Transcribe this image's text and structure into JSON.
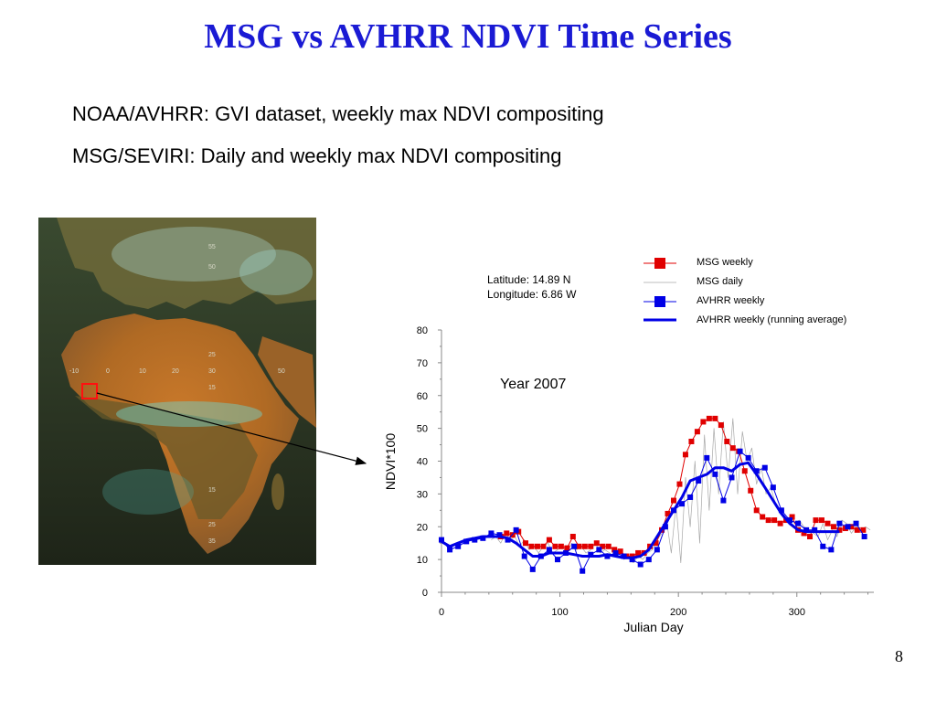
{
  "slide": {
    "title": "MSG vs AVHRR NDVI Time Series",
    "line1": "NOAA/AVHRR: GVI dataset, weekly max NDVI compositing",
    "line2": "MSG/SEVIRI: Daily and weekly max NDVI compositing",
    "page_number": "8"
  },
  "map": {
    "lat_labels": [
      "55",
      "50",
      "25",
      "15",
      "15",
      "25",
      "35"
    ],
    "lon_labels": [
      "-10",
      "0",
      "10",
      "20",
      "30",
      "50"
    ]
  },
  "chart_data": {
    "type": "line",
    "xlabel": "Julian Day",
    "ylabel": "NDVI*100",
    "xlim": [
      0,
      365
    ],
    "ylim": [
      0,
      80
    ],
    "xticks": [
      0,
      100,
      200,
      300
    ],
    "yticks": [
      0,
      10,
      20,
      30,
      40,
      50,
      60,
      70,
      80
    ],
    "annotations": {
      "location_line1": "Latitude:  14.89 N",
      "location_line2": "Longitude: 6.86 W",
      "year": "Year 2007"
    },
    "legend_position": "top-right",
    "series": [
      {
        "name": "MSG weekly",
        "color": "#e00000",
        "marker": "square",
        "x": [
          50,
          55,
          60,
          65,
          71,
          76,
          81,
          86,
          91,
          96,
          101,
          106,
          111,
          116,
          121,
          126,
          131,
          136,
          141,
          146,
          151,
          156,
          161,
          166,
          171,
          176,
          181,
          186,
          191,
          196,
          201,
          206,
          211,
          216,
          221,
          226,
          231,
          236,
          241,
          246,
          251,
          256,
          261,
          266,
          271,
          276,
          281,
          286,
          291,
          296,
          301,
          306,
          311,
          316,
          321,
          326,
          331,
          336,
          341,
          346,
          351,
          356
        ],
        "y": [
          17,
          18,
          17.5,
          18.5,
          15,
          14,
          14,
          14,
          16,
          14,
          14,
          13.5,
          17,
          14,
          14,
          14,
          15,
          14,
          14,
          13,
          12.5,
          11,
          11,
          12,
          12,
          14,
          15,
          19,
          24,
          28,
          33,
          42,
          46,
          49,
          52,
          53,
          53,
          51,
          46,
          44,
          43,
          37,
          31,
          25,
          23,
          22,
          22,
          21,
          22,
          23,
          19,
          18,
          17,
          22,
          22,
          21,
          20,
          19,
          19.5,
          20,
          19,
          19
        ]
      },
      {
        "name": "AVHRR weekly",
        "color": "#0000e6",
        "marker": "square",
        "x": [
          0,
          7,
          14,
          21,
          28,
          35,
          42,
          49,
          56,
          63,
          70,
          77,
          84,
          91,
          98,
          105,
          112,
          119,
          126,
          133,
          140,
          147,
          154,
          161,
          168,
          175,
          182,
          189,
          196,
          203,
          210,
          217,
          224,
          231,
          238,
          245,
          252,
          259,
          266,
          273,
          280,
          287,
          294,
          301,
          308,
          315,
          322,
          329,
          336,
          343,
          350,
          357
        ],
        "y": [
          16,
          13,
          14,
          15.5,
          16,
          16.5,
          18,
          17.5,
          16,
          19,
          11,
          7,
          11,
          13,
          10,
          12,
          14,
          6.5,
          11.5,
          13,
          11,
          12,
          11,
          10,
          8.5,
          10,
          13,
          20,
          25,
          27,
          29,
          34,
          41,
          36,
          28,
          35,
          43,
          41,
          37,
          38,
          32,
          25,
          22,
          21,
          19,
          19,
          14,
          13,
          21,
          20,
          21,
          17
        ]
      },
      {
        "name": "AVHRR weekly (running average)",
        "color": "#0000e6",
        "marker": "none",
        "x": [
          0,
          7,
          14,
          21,
          28,
          35,
          42,
          49,
          56,
          63,
          70,
          77,
          84,
          91,
          98,
          105,
          112,
          119,
          126,
          133,
          140,
          147,
          154,
          161,
          168,
          175,
          182,
          189,
          196,
          203,
          210,
          217,
          224,
          231,
          238,
          245,
          252,
          259,
          266,
          273,
          280,
          287,
          294,
          301,
          308,
          315,
          322,
          329,
          336
        ],
        "y": [
          15.5,
          14,
          15,
          16,
          16.5,
          17,
          17,
          17,
          16.5,
          15,
          13,
          11,
          11,
          12,
          12,
          12,
          11.5,
          11,
          11,
          11,
          11.5,
          11,
          10.5,
          10.5,
          11,
          13,
          17,
          21,
          25,
          29,
          34,
          35,
          36,
          38,
          38,
          37,
          39,
          39.5,
          36,
          32,
          28,
          24,
          21,
          19,
          18.5,
          18.5,
          18.5,
          18.5,
          18.5
        ]
      },
      {
        "name": "MSG daily",
        "color": "#a8a8a8",
        "marker": "none",
        "x": [
          42,
          46,
          50,
          54,
          58,
          62,
          66,
          70,
          74,
          78,
          82,
          86,
          90,
          94,
          98,
          102,
          106,
          110,
          114,
          118,
          122,
          126,
          130,
          134,
          138,
          142,
          146,
          150,
          154,
          158,
          162,
          166,
          170,
          174,
          178,
          182,
          186,
          190,
          194,
          198,
          202,
          206,
          210,
          214,
          218,
          222,
          226,
          230,
          234,
          238,
          242,
          246,
          250,
          254,
          258,
          262,
          266,
          270,
          274,
          278,
          282,
          286,
          290,
          294,
          298,
          302,
          306,
          310,
          314,
          318,
          322,
          326,
          330,
          334,
          338,
          342,
          346,
          350,
          354,
          358,
          362
        ],
        "y": [
          16,
          17,
          15,
          18,
          16,
          17,
          14,
          16,
          13,
          14,
          12,
          14,
          15,
          12,
          13,
          14,
          12,
          15,
          13,
          14,
          12,
          13,
          15,
          12,
          13,
          12,
          11,
          12,
          10,
          11,
          9,
          11,
          10,
          12,
          13,
          16,
          18,
          22,
          12,
          27,
          9,
          35,
          20,
          40,
          15,
          48,
          25,
          50,
          30,
          52,
          35,
          53,
          30,
          49,
          40,
          44,
          33,
          38,
          30,
          32,
          27,
          24,
          22,
          23,
          21,
          22,
          20,
          19,
          18,
          17,
          21,
          16,
          19,
          17,
          22,
          21,
          18,
          20,
          19,
          20,
          19
        ]
      }
    ]
  }
}
